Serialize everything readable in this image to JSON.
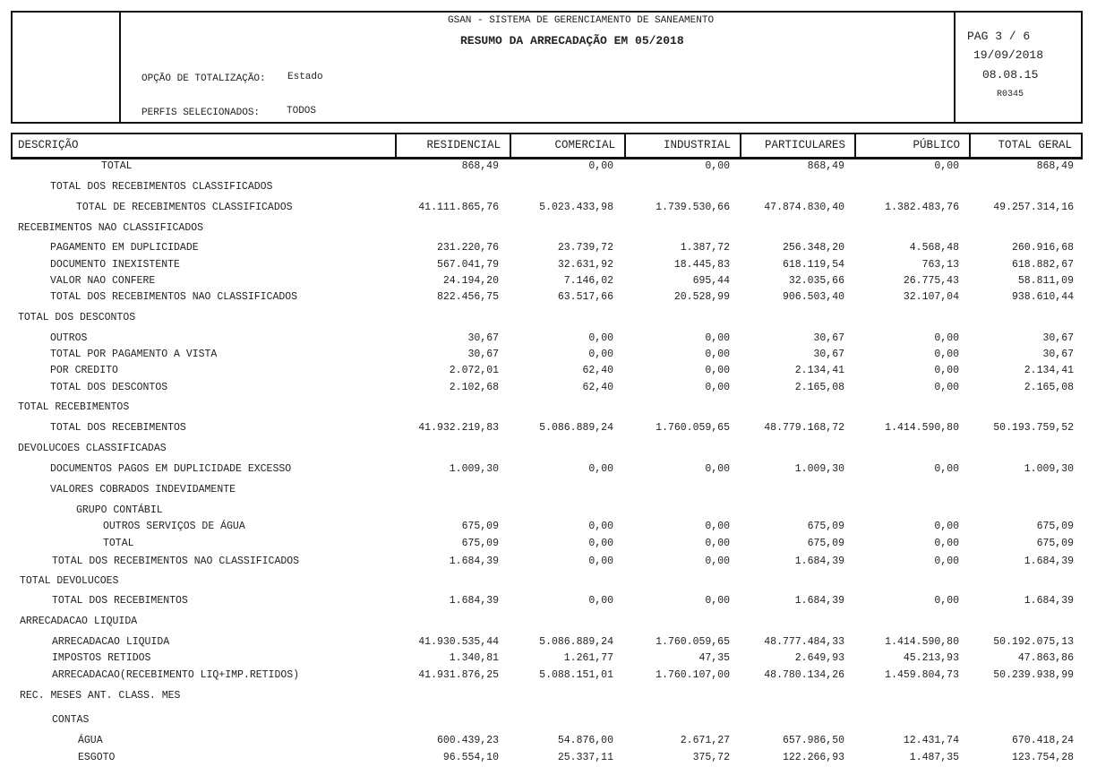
{
  "header": {
    "system": "GSAN - SISTEMA DE GERENCIAMENTO DE SANEAMENTO",
    "title": "RESUMO DA ARRECADAÇÃO EM  05/2018",
    "option_label": "OPÇÃO DE TOTALIZAÇÃO:",
    "option_value": "Estado",
    "profiles_label": "PERFIS SELECIONADOS:",
    "profiles_value": "TODOS",
    "page": "PAG 3 / 6",
    "date": "19/09/2018",
    "time": "08.08.15",
    "report_code": "R0345"
  },
  "columns": [
    "DESCRIÇÃO",
    "RESIDENCIAL",
    "COMERCIAL",
    "INDUSTRIAL",
    "PARTICULARES",
    "PÚBLICO",
    "TOTAL GERAL"
  ],
  "rows": [
    {
      "label": "TOTAL",
      "values": [
        "868,49",
        "0,00",
        "0,00",
        "868,49",
        "0,00",
        "868,49"
      ]
    },
    {
      "label": "TOTAL DOS RECEBIMENTOS CLASSIFICADOS",
      "values": []
    },
    {
      "label": "TOTAL DE RECEBIMENTOS CLASSIFICADOS",
      "values": [
        "41.111.865,76",
        "5.023.433,98",
        "1.739.530,66",
        "47.874.830,40",
        "1.382.483,76",
        "49.257.314,16"
      ]
    },
    {
      "label": "RECEBIMENTOS NAO CLASSIFICADOS",
      "values": []
    },
    {
      "label": "PAGAMENTO EM DUPLICIDADE",
      "values": [
        "231.220,76",
        "23.739,72",
        "1.387,72",
        "256.348,20",
        "4.568,48",
        "260.916,68"
      ]
    },
    {
      "label": "DOCUMENTO INEXISTENTE",
      "values": [
        "567.041,79",
        "32.631,92",
        "18.445,83",
        "618.119,54",
        "763,13",
        "618.882,67"
      ]
    },
    {
      "label": "VALOR NAO CONFERE",
      "values": [
        "24.194,20",
        "7.146,02",
        "695,44",
        "32.035,66",
        "26.775,43",
        "58.811,09"
      ]
    },
    {
      "label": "TOTAL DOS RECEBIMENTOS NAO CLASSIFICADOS",
      "values": [
        "822.456,75",
        "63.517,66",
        "20.528,99",
        "906.503,40",
        "32.107,04",
        "938.610,44"
      ]
    },
    {
      "label": "TOTAL DOS DESCONTOS",
      "values": []
    },
    {
      "label": "OUTROS",
      "values": [
        "30,67",
        "0,00",
        "0,00",
        "30,67",
        "0,00",
        "30,67"
      ]
    },
    {
      "label": "TOTAL POR PAGAMENTO A VISTA",
      "values": [
        "30,67",
        "0,00",
        "0,00",
        "30,67",
        "0,00",
        "30,67"
      ]
    },
    {
      "label": "POR CREDITO",
      "values": [
        "2.072,01",
        "62,40",
        "0,00",
        "2.134,41",
        "0,00",
        "2.134,41"
      ]
    },
    {
      "label": "TOTAL DOS DESCONTOS",
      "values": [
        "2.102,68",
        "62,40",
        "0,00",
        "2.165,08",
        "0,00",
        "2.165,08"
      ]
    },
    {
      "label": "TOTAL RECEBIMENTOS",
      "values": []
    },
    {
      "label": "TOTAL DOS RECEBIMENTOS",
      "values": [
        "41.932.219,83",
        "5.086.889,24",
        "1.760.059,65",
        "48.779.168,72",
        "1.414.590,80",
        "50.193.759,52"
      ]
    },
    {
      "label": "DEVOLUCOES CLASSIFICADAS",
      "values": []
    },
    {
      "label": "DOCUMENTOS PAGOS EM DUPLICIDADE EXCESSO",
      "values": [
        "1.009,30",
        "0,00",
        "0,00",
        "1.009,30",
        "0,00",
        "1.009,30"
      ]
    },
    {
      "label": "VALORES COBRADOS INDEVIDAMENTE",
      "values": []
    },
    {
      "label": "GRUPO CONTÁBIL",
      "values": []
    },
    {
      "label": "OUTROS SERVIÇOS DE ÁGUA",
      "values": [
        "675,09",
        "0,00",
        "0,00",
        "675,09",
        "0,00",
        "675,09"
      ]
    },
    {
      "label": "TOTAL",
      "values": [
        "675,09",
        "0,00",
        "0,00",
        "675,09",
        "0,00",
        "675,09"
      ]
    },
    {
      "label": "TOTAL DOS RECEBIMENTOS NAO CLASSIFICADOS",
      "values": [
        "1.684,39",
        "0,00",
        "0,00",
        "1.684,39",
        "0,00",
        "1.684,39"
      ]
    },
    {
      "label": "TOTAL DEVOLUCOES",
      "values": []
    },
    {
      "label": "TOTAL DOS RECEBIMENTOS",
      "values": [
        "1.684,39",
        "0,00",
        "0,00",
        "1.684,39",
        "0,00",
        "1.684,39"
      ]
    },
    {
      "label": "ARRECADACAO LIQUIDA",
      "values": []
    },
    {
      "label": "ARRECADACAO LIQUIDA",
      "values": [
        "41.930.535,44",
        "5.086.889,24",
        "1.760.059,65",
        "48.777.484,33",
        "1.414.590,80",
        "50.192.075,13"
      ]
    },
    {
      "label": "IMPOSTOS RETIDOS",
      "values": [
        "1.340,81",
        "1.261,77",
        "47,35",
        "2.649,93",
        "45.213,93",
        "47.863,86"
      ]
    },
    {
      "label": "ARRECADACAO(RECEBIMENTO LIQ+IMP.RETIDOS)",
      "values": [
        "41.931.876,25",
        "5.088.151,01",
        "1.760.107,00",
        "48.780.134,26",
        "1.459.804,73",
        "50.239.938,99"
      ]
    },
    {
      "label": "REC. MESES ANT. CLASS. MES",
      "values": []
    },
    {
      "label": "CONTAS",
      "values": []
    },
    {
      "label": "ÁGUA",
      "values": [
        "600.439,23",
        "54.876,00",
        "2.671,27",
        "657.986,50",
        "12.431,74",
        "670.418,24"
      ]
    },
    {
      "label": "ESGOTO",
      "values": [
        "96.554,10",
        "25.337,11",
        "375,72",
        "122.266,93",
        "1.487,35",
        "123.754,28"
      ]
    }
  ]
}
